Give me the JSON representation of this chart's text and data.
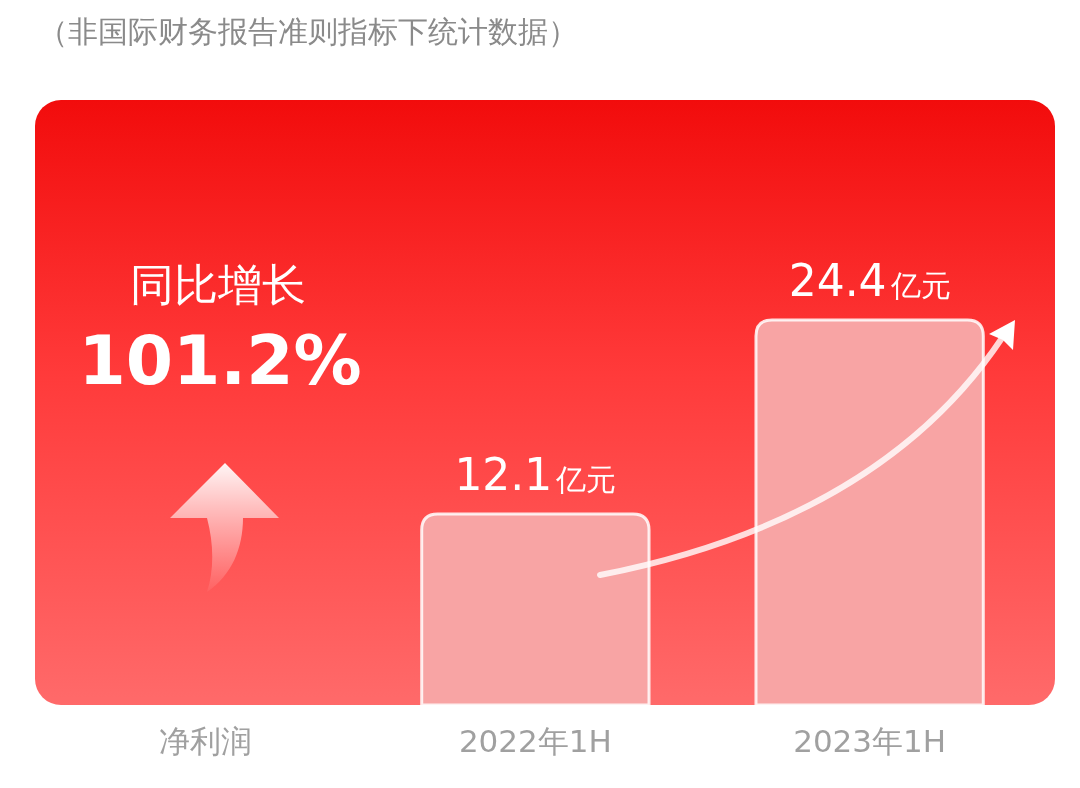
{
  "chart_data": {
    "type": "bar",
    "subtitle": "（非国际财务报告准则指标下统计数据）",
    "xlabel": "净利润",
    "categories": [
      "2022年1H",
      "2023年1H"
    ],
    "values": [
      12.1,
      24.4
    ],
    "color": "#f8a4a4",
    "value_labels": [
      "12.1亿元",
      "24.4亿元"
    ],
    "annotations": [
      "同比增长",
      "101.2%"
    ]
  }
}
